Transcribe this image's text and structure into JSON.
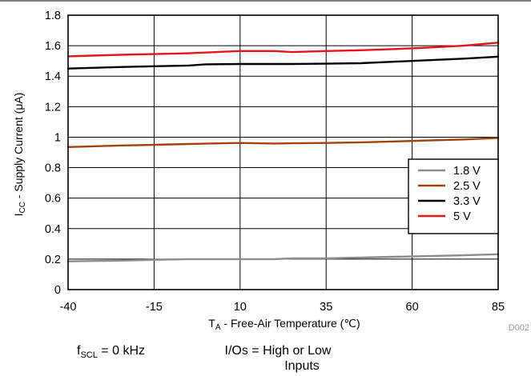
{
  "chart_data": {
    "type": "line",
    "xlabel_main": "T",
    "xlabel_sub": "A",
    "xlabel_rest": " - Free-Air Temperature (℃)",
    "ylabel_main": "I",
    "ylabel_sub": "CC",
    "ylabel_rest": " - Supply Current (μA)",
    "xlim": [
      -40,
      85
    ],
    "ylim": [
      0,
      1.8
    ],
    "x_ticks": [
      -40,
      -15,
      10,
      35,
      60,
      85
    ],
    "y_ticks": [
      0,
      0.2,
      0.4,
      0.6,
      0.8,
      1,
      1.2,
      1.4,
      1.6,
      1.8
    ],
    "x_tick_labels": [
      "-40",
      "-15",
      "10",
      "35",
      "60",
      "85"
    ],
    "y_tick_labels": [
      "0",
      "0.2",
      "0.4",
      "0.6",
      "0.8",
      "1",
      "1.2",
      "1.4",
      "1.6",
      "1.8"
    ],
    "grid": true,
    "legend_position": "right",
    "series": [
      {
        "name": "1.8 V",
        "color": "#8c8c8c",
        "x": [
          -40,
          -25,
          -15,
          -5,
          5,
          10,
          20,
          25,
          35,
          45,
          55,
          65,
          75,
          85
        ],
        "y": [
          0.185,
          0.19,
          0.195,
          0.2,
          0.2,
          0.2,
          0.2,
          0.205,
          0.205,
          0.21,
          0.215,
          0.22,
          0.225,
          0.232
        ]
      },
      {
        "name": "2.5 V",
        "color": "#a3420b",
        "x": [
          -40,
          -25,
          -15,
          -5,
          5,
          10,
          20,
          25,
          35,
          45,
          55,
          65,
          75,
          85
        ],
        "y": [
          0.935,
          0.945,
          0.95,
          0.955,
          0.96,
          0.962,
          0.958,
          0.96,
          0.962,
          0.966,
          0.972,
          0.978,
          0.985,
          0.995
        ]
      },
      {
        "name": "3.3 V",
        "color": "#000000",
        "x": [
          -40,
          -25,
          -15,
          -5,
          0,
          10,
          20,
          25,
          35,
          45,
          55,
          65,
          75,
          85
        ],
        "y": [
          1.45,
          1.46,
          1.465,
          1.47,
          1.478,
          1.48,
          1.48,
          1.48,
          1.482,
          1.485,
          1.495,
          1.505,
          1.515,
          1.528
        ]
      },
      {
        "name": "5 V",
        "color": "#e3151b",
        "x": [
          -40,
          -25,
          -15,
          -5,
          5,
          10,
          20,
          25,
          35,
          45,
          55,
          65,
          75,
          85
        ],
        "y": [
          1.53,
          1.54,
          1.545,
          1.55,
          1.56,
          1.565,
          1.565,
          1.558,
          1.565,
          1.57,
          1.578,
          1.588,
          1.6,
          1.62
        ]
      }
    ]
  },
  "figure_code": "D002",
  "conditions": {
    "fscl_main": "f",
    "fscl_sub": "SCL",
    "fscl_rest": " = 0 kHz",
    "ios_line1": "I/Os = High or Low",
    "ios_line2": "Inputs"
  }
}
